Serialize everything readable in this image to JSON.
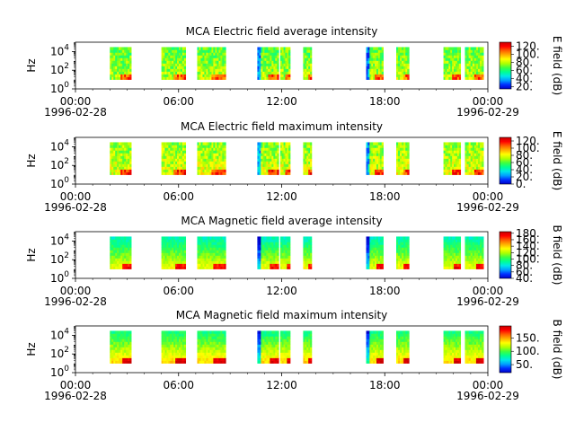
{
  "figure": {
    "background": "#ffffff"
  },
  "colormap": [
    "#0000c8",
    "#0030ff",
    "#00a0ff",
    "#00e8e8",
    "#00ff90",
    "#40ff40",
    "#b0ff00",
    "#ffff00",
    "#ffb000",
    "#ff6000",
    "#ff0000",
    "#c80000"
  ],
  "chart_data": [
    {
      "type": "heatmap",
      "title": "MCA  Electric field average intensity",
      "ylabel": "Hz",
      "colorbar_label": "E field (dB)",
      "y_scale": "log",
      "y_ticks": [
        "10^0",
        "10^2",
        "10^4"
      ],
      "x_ticks": [
        "00:00",
        "06:00",
        "12:00",
        "18:00",
        "00:00"
      ],
      "x_date_labels": [
        "1996-02-28",
        "1996-02-29"
      ],
      "colorbar_ticks": [
        "120.",
        "100.",
        "80.",
        "60.",
        "40.",
        "20."
      ],
      "colorbar_range": [
        15,
        130
      ],
      "data_windows_utc": [
        [
          "02:00",
          "03:15"
        ],
        [
          "05:00",
          "06:25"
        ],
        [
          "07:05",
          "08:45"
        ],
        [
          "10:35",
          "11:50"
        ],
        [
          "11:55",
          "12:30"
        ],
        [
          "13:15",
          "13:45"
        ],
        [
          "16:55",
          "17:55"
        ],
        [
          "18:40",
          "19:25"
        ],
        [
          "21:25",
          "22:25"
        ],
        [
          "22:40",
          "23:45"
        ]
      ],
      "freq_range_hz": [
        10,
        30000
      ]
    },
    {
      "type": "heatmap",
      "title": "MCA  Electric field maximum intensity",
      "ylabel": "Hz",
      "colorbar_label": "E field (dB)",
      "y_scale": "log",
      "y_ticks": [
        "10^0",
        "10^2",
        "10^4"
      ],
      "x_ticks": [
        "00:00",
        "06:00",
        "12:00",
        "18:00",
        "00:00"
      ],
      "x_date_labels": [
        "1996-02-28",
        "1996-02-29"
      ],
      "colorbar_ticks": [
        "120.",
        "100.",
        "80.",
        "60.",
        "40.",
        "20.",
        "0."
      ],
      "colorbar_range": [
        0,
        130
      ],
      "data_windows_utc": [
        [
          "02:00",
          "03:15"
        ],
        [
          "05:00",
          "06:25"
        ],
        [
          "07:05",
          "08:45"
        ],
        [
          "10:35",
          "11:50"
        ],
        [
          "11:55",
          "12:30"
        ],
        [
          "13:15",
          "13:45"
        ],
        [
          "16:55",
          "17:55"
        ],
        [
          "18:40",
          "19:25"
        ],
        [
          "21:25",
          "22:25"
        ],
        [
          "22:40",
          "23:45"
        ]
      ],
      "freq_range_hz": [
        10,
        30000
      ]
    },
    {
      "type": "heatmap",
      "title": "MCA  Magnetic field average intensity",
      "ylabel": "Hz",
      "colorbar_label": "B field (dB)",
      "y_scale": "log",
      "y_ticks": [
        "10^0",
        "10^2",
        "10^4"
      ],
      "x_ticks": [
        "00:00",
        "06:00",
        "12:00",
        "18:00",
        "00:00"
      ],
      "x_date_labels": [
        "1996-02-28",
        "1996-02-29"
      ],
      "colorbar_ticks": [
        "180.",
        "160.",
        "140.",
        "120.",
        "100.",
        "80.",
        "60.",
        "40."
      ],
      "colorbar_range": [
        40,
        185
      ],
      "data_windows_utc": [
        [
          "02:00",
          "03:15"
        ],
        [
          "05:00",
          "06:25"
        ],
        [
          "07:05",
          "08:45"
        ],
        [
          "10:35",
          "11:50"
        ],
        [
          "11:55",
          "12:30"
        ],
        [
          "13:15",
          "13:45"
        ],
        [
          "16:55",
          "17:55"
        ],
        [
          "18:40",
          "19:25"
        ],
        [
          "21:25",
          "22:25"
        ],
        [
          "22:40",
          "23:45"
        ]
      ],
      "freq_range_hz": [
        10,
        30000
      ]
    },
    {
      "type": "heatmap",
      "title": "MCA  Magnetic field maximum intensity",
      "ylabel": "Hz",
      "colorbar_label": "B field (dB)",
      "y_scale": "log",
      "y_ticks": [
        "10^0",
        "10^2",
        "10^4"
      ],
      "x_ticks": [
        "00:00",
        "06:00",
        "12:00",
        "18:00",
        "00:00"
      ],
      "x_date_labels": [
        "1996-02-28",
        "1996-02-29"
      ],
      "colorbar_ticks": [
        "150.",
        "100.",
        "50."
      ],
      "colorbar_range": [
        20,
        195
      ],
      "data_windows_utc": [
        [
          "02:00",
          "03:15"
        ],
        [
          "05:00",
          "06:25"
        ],
        [
          "07:05",
          "08:45"
        ],
        [
          "10:35",
          "11:50"
        ],
        [
          "11:55",
          "12:30"
        ],
        [
          "13:15",
          "13:45"
        ],
        [
          "16:55",
          "17:55"
        ],
        [
          "18:40",
          "19:25"
        ],
        [
          "21:25",
          "22:25"
        ],
        [
          "22:40",
          "23:45"
        ]
      ],
      "freq_range_hz": [
        10,
        30000
      ]
    }
  ]
}
